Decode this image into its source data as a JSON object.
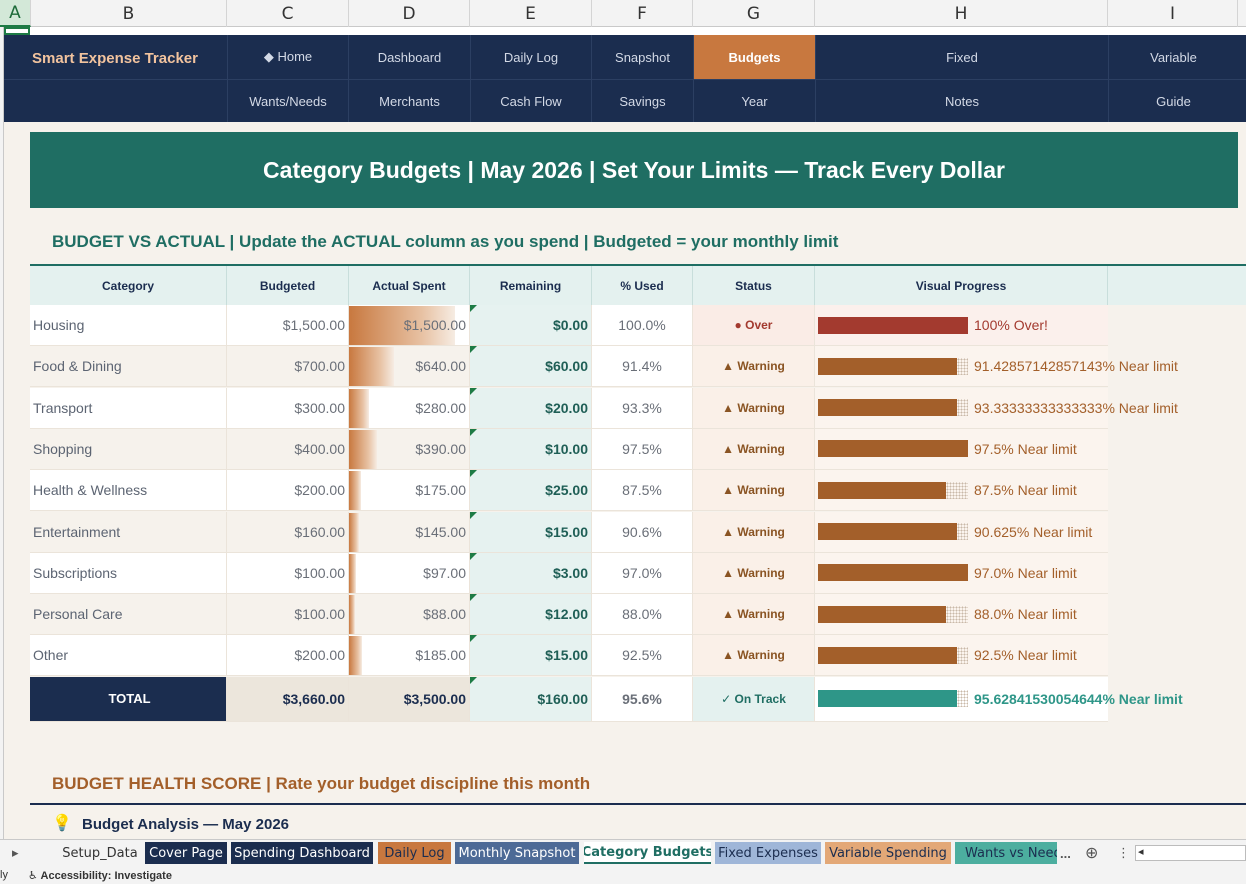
{
  "columns": [
    "A",
    "B",
    "C",
    "D",
    "E",
    "F",
    "G",
    "H",
    "I"
  ],
  "nav": {
    "brand": "Smart Expense Tracker",
    "row1": [
      "◆ Home",
      "Dashboard",
      "Daily Log",
      "Snapshot",
      "Budgets",
      "Fixed",
      "Variable"
    ],
    "row2": [
      "Wants/Needs",
      "Merchants",
      "Cash Flow",
      "Savings",
      "Year",
      "Notes",
      "Guide"
    ],
    "active": "Budgets"
  },
  "banner": "Category Budgets  |  May 2026  |  Set Your Limits — Track Every Dollar",
  "section1": "BUDGET VS ACTUAL  |  Update the ACTUAL column as you spend  |  Budgeted = your monthly limit",
  "table": {
    "headers": [
      "Category",
      "Budgeted",
      "Actual Spent",
      "Remaining",
      "% Used",
      "Status",
      "Visual Progress"
    ],
    "rows": [
      {
        "category": "Housing",
        "budgeted": "$1,500.00",
        "actual": "$1,500.00",
        "remaining": "$0.00",
        "pct": "100.0%",
        "status": "● Over",
        "progress_label": "100%  Over!",
        "used": 1.0,
        "state": "over"
      },
      {
        "category": "Food & Dining",
        "budgeted": "$700.00",
        "actual": "$640.00",
        "remaining": "$60.00",
        "pct": "91.4%",
        "status": "▲ Warning",
        "progress_label": "91.42857142857143%  Near limit",
        "used": 0.914,
        "state": "warn"
      },
      {
        "category": "Transport",
        "budgeted": "$300.00",
        "actual": "$280.00",
        "remaining": "$20.00",
        "pct": "93.3%",
        "status": "▲ Warning",
        "progress_label": "93.33333333333333%  Near limit",
        "used": 0.933,
        "state": "warn"
      },
      {
        "category": "Shopping",
        "budgeted": "$400.00",
        "actual": "$390.00",
        "remaining": "$10.00",
        "pct": "97.5%",
        "status": "▲ Warning",
        "progress_label": "97.5%  Near limit",
        "used": 0.975,
        "state": "warn"
      },
      {
        "category": "Health & Wellness",
        "budgeted": "$200.00",
        "actual": "$175.00",
        "remaining": "$25.00",
        "pct": "87.5%",
        "status": "▲ Warning",
        "progress_label": "87.5%  Near limit",
        "used": 0.875,
        "state": "warn"
      },
      {
        "category": "Entertainment",
        "budgeted": "$160.00",
        "actual": "$145.00",
        "remaining": "$15.00",
        "pct": "90.6%",
        "status": "▲ Warning",
        "progress_label": "90.625%  Near limit",
        "used": 0.906,
        "state": "warn"
      },
      {
        "category": "Subscriptions",
        "budgeted": "$100.00",
        "actual": "$97.00",
        "remaining": "$3.00",
        "pct": "97.0%",
        "status": "▲ Warning",
        "progress_label": "97.0%  Near limit",
        "used": 0.97,
        "state": "warn"
      },
      {
        "category": "Personal Care",
        "budgeted": "$100.00",
        "actual": "$88.00",
        "remaining": "$12.00",
        "pct": "88.0%",
        "status": "▲ Warning",
        "progress_label": "88.0%  Near limit",
        "used": 0.88,
        "state": "warn"
      },
      {
        "category": "Other",
        "budgeted": "$200.00",
        "actual": "$185.00",
        "remaining": "$15.00",
        "pct": "92.5%",
        "status": "▲ Warning",
        "progress_label": "92.5%  Near limit",
        "used": 0.925,
        "state": "warn"
      }
    ],
    "total": {
      "category": "TOTAL",
      "budgeted": "$3,660.00",
      "actual": "$3,500.00",
      "remaining": "$160.00",
      "pct": "95.6%",
      "status": "✓ On Track",
      "progress_label": "95.62841530054644%  Near limit",
      "used": 0.956,
      "state": "ok"
    }
  },
  "section2": "BUDGET HEALTH SCORE  |  Rate your budget discipline this month",
  "analysis": "Budget Analysis — May 2026",
  "tabs": [
    "Setup_Data",
    "Cover Page",
    "Spending Dashboard",
    "Daily Log",
    "Monthly Snapshot",
    "Category Budgets",
    "Fixed Expenses",
    "Variable Spending",
    "Wants vs Needs"
  ],
  "tab_more": "...",
  "status": {
    "ready": "ly",
    "accessibility": "Accessibility: Investigate"
  },
  "colors": {
    "navy": "#1b2d4f",
    "teal": "#1f6e63",
    "copper": "#c8783f",
    "over": "#a33a2f",
    "warn": "#a35f2a",
    "ok": "#2e9688"
  }
}
